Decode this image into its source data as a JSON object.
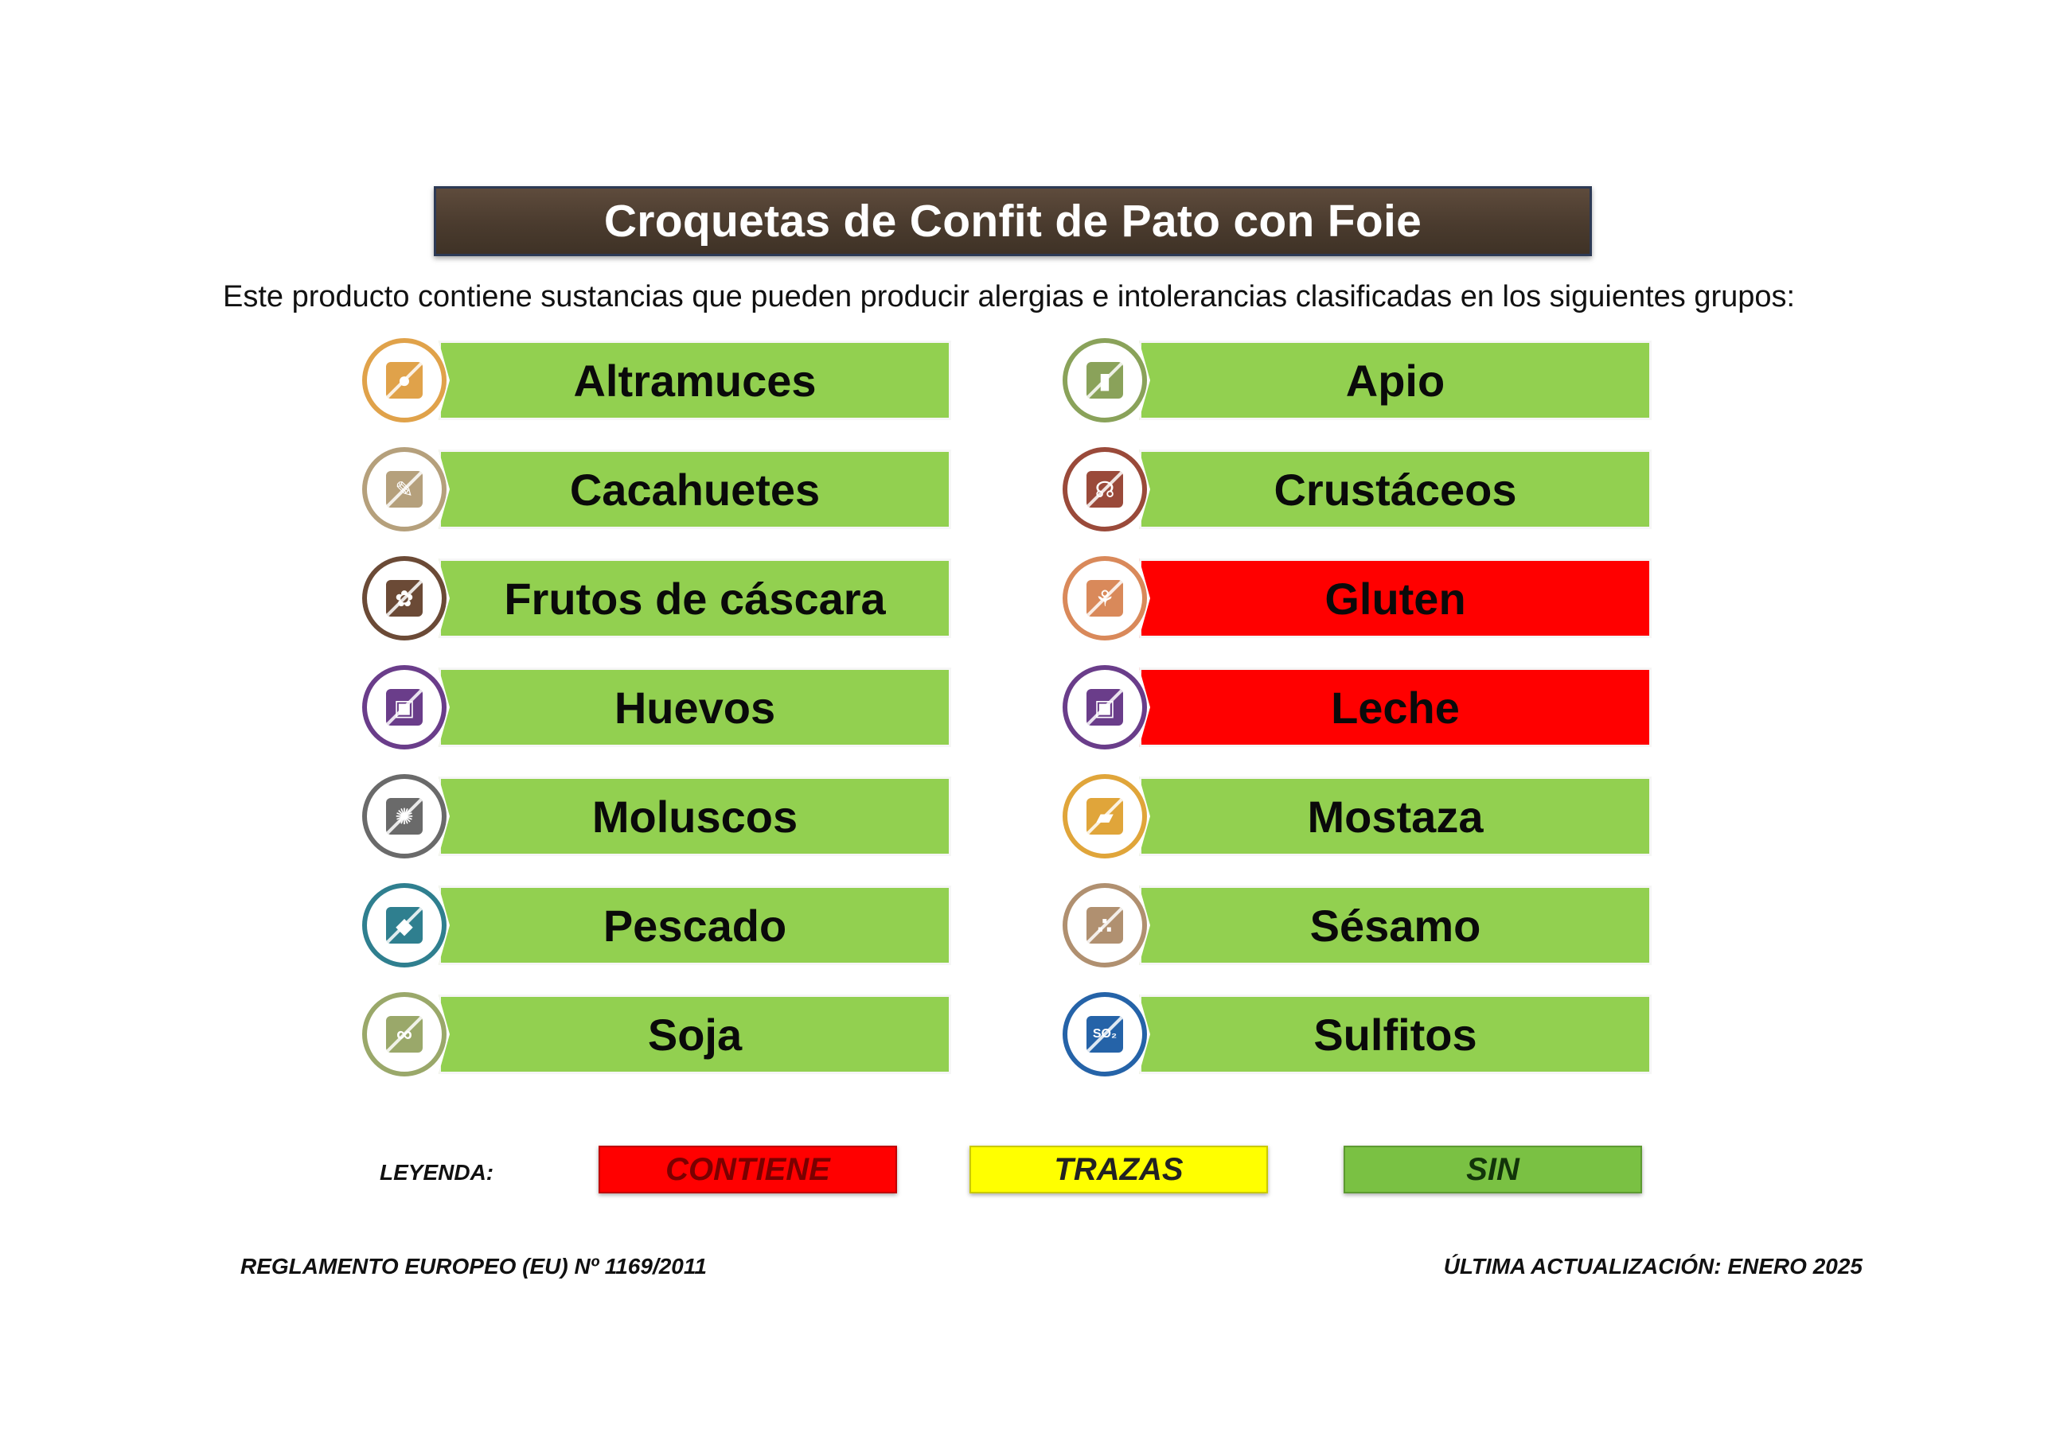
{
  "title": "Croquetas de Confit de Pato con Foie",
  "intro": "Este producto contiene sustancias que pueden producir alergias e intolerancias clasificadas en los siguientes grupos:",
  "allergens": [
    {
      "label": "Altramuces",
      "status": "sin",
      "icon": "lupin-icon",
      "ring_color": "#e0a24a",
      "glyph": "●"
    },
    {
      "label": "Apio",
      "status": "sin",
      "icon": "celery-icon",
      "ring_color": "#8aa25a",
      "glyph": "▮"
    },
    {
      "label": "Cacahuetes",
      "status": "sin",
      "icon": "peanut-icon",
      "ring_color": "#b5a07c",
      "glyph": "✎"
    },
    {
      "label": "Crustáceos",
      "status": "sin",
      "icon": "shrimp-icon",
      "ring_color": "#9a4a3a",
      "glyph": "☊"
    },
    {
      "label": "Frutos de cáscara",
      "status": "sin",
      "icon": "nut-icon",
      "ring_color": "#6b4a36",
      "glyph": "✿"
    },
    {
      "label": "Gluten",
      "status": "contiene",
      "icon": "wheat-icon",
      "ring_color": "#d9895a",
      "glyph": "⚘"
    },
    {
      "label": "Huevos",
      "status": "sin",
      "icon": "egg-icon",
      "ring_color": "#6a3d8a",
      "glyph": "▣"
    },
    {
      "label": "Leche",
      "status": "contiene",
      "icon": "milk-icon",
      "ring_color": "#6a3d8a",
      "glyph": "▣"
    },
    {
      "label": "Moluscos",
      "status": "sin",
      "icon": "shell-icon",
      "ring_color": "#6a6a6a",
      "glyph": "✺"
    },
    {
      "label": "Mostaza",
      "status": "sin",
      "icon": "mustard-icon",
      "ring_color": "#e0a53a",
      "glyph": "▰"
    },
    {
      "label": "Pescado",
      "status": "sin",
      "icon": "fish-icon",
      "ring_color": "#2f7f8f",
      "glyph": "◆"
    },
    {
      "label": "Sésamo",
      "status": "sin",
      "icon": "sesame-icon",
      "ring_color": "#b09070",
      "glyph": "∴"
    },
    {
      "label": "Soja",
      "status": "sin",
      "icon": "soy-icon",
      "ring_color": "#9aa86a",
      "glyph": "∞"
    },
    {
      "label": "Sulfitos",
      "status": "sin",
      "icon": "sulphite-icon",
      "ring_color": "#2563a8",
      "glyph": "SO₂"
    }
  ],
  "status_colors": {
    "contiene": "#ff0000",
    "trazas": "#ffff00",
    "sin": "#92d050"
  },
  "legend": {
    "label": "LEYENDA:",
    "contiene": "CONTIENE",
    "trazas": "TRAZAS",
    "sin": "SIN"
  },
  "footer": {
    "left": "REGLAMENTO EUROPEO (EU) Nº 1169/2011",
    "right": "ÚLTIMA ACTUALIZACIÓN: ENERO 2025"
  }
}
